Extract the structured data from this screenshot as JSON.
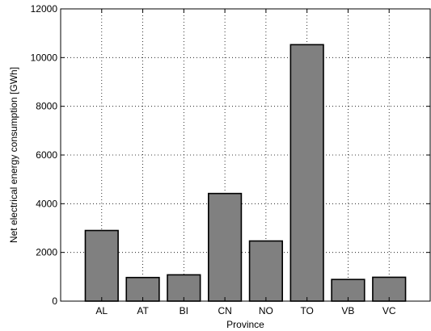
{
  "chart_data": {
    "type": "bar",
    "categories": [
      "AL",
      "AT",
      "BI",
      "CN",
      "NO",
      "TO",
      "VB",
      "VC"
    ],
    "values": [
      2900,
      970,
      1080,
      4420,
      2470,
      10530,
      890,
      980
    ],
    "xlabel": "Province",
    "ylabel": "Net electrical energy consumption [GWh]",
    "ylim": [
      0,
      12000
    ],
    "yticks": [
      0,
      2000,
      4000,
      6000,
      8000,
      10000,
      12000
    ],
    "grid": true,
    "bar_color": "#808080",
    "edge_color": "#000000"
  }
}
